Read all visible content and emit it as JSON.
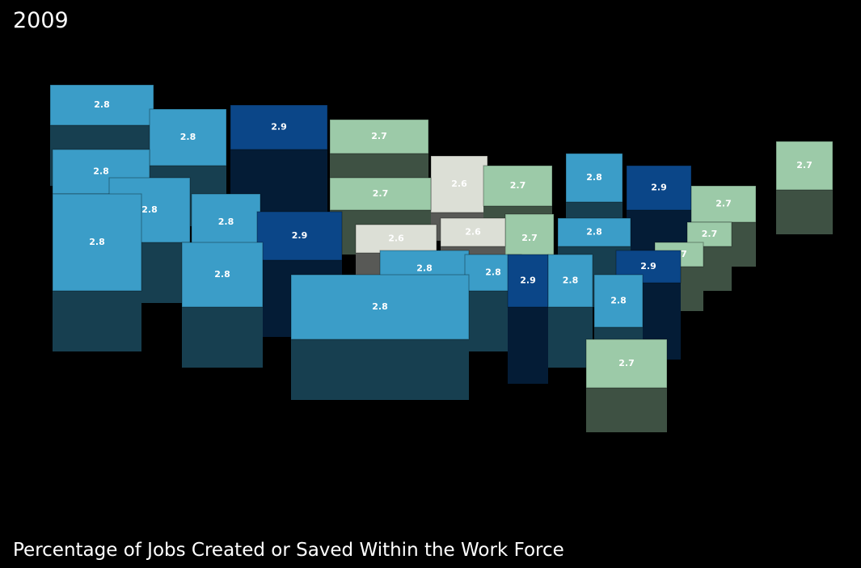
{
  "title": "2009",
  "caption": "Percentage of Jobs Created or Saved Within the Work Force",
  "labels": [
    2.8,
    2.8,
    2.9,
    2.7,
    2.8,
    2.7,
    2.6,
    2.7,
    2.8,
    2.9,
    2.7,
    2.7,
    2.8,
    2.8,
    2.9,
    2.6,
    2.6,
    2.7,
    2.8,
    2.7,
    2.8,
    2.8,
    2.8,
    2.8,
    2.9,
    2.8,
    2.9,
    2.8,
    2.8,
    2.7,
    2.7
  ]
}
